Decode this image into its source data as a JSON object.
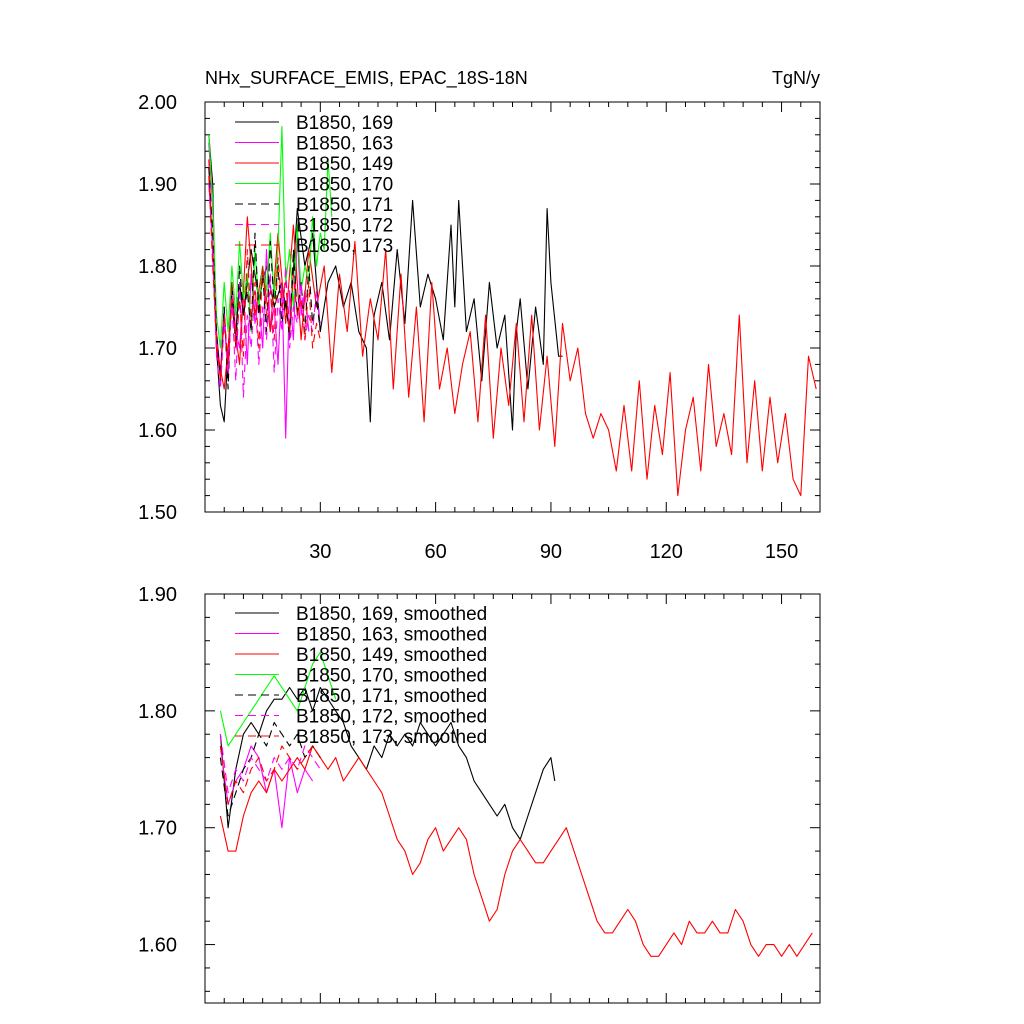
{
  "chart_data": [
    {
      "type": "line",
      "title": "NHx_SURFACE_EMIS, EPAC_18S-18N",
      "units": "TgN/y",
      "xlim": [
        0,
        160
      ],
      "ylim": [
        1.5,
        2.0
      ],
      "xticks": [
        30,
        60,
        90,
        120,
        150
      ],
      "yticks": [
        1.5,
        1.6,
        1.7,
        1.8,
        1.9,
        2.0
      ],
      "ytick_labels": [
        "1.50",
        "1.60",
        "1.70",
        "1.80",
        "1.90",
        "2.00"
      ],
      "series": [
        {
          "name": "B1850, 169",
          "color": "#000000",
          "dash": "solid",
          "x": [
            1,
            2,
            3,
            4,
            5,
            6,
            7,
            8,
            9,
            10,
            12,
            14,
            16,
            18,
            20,
            22,
            24,
            26,
            28,
            30,
            32,
            34,
            36,
            38,
            40,
            42,
            43,
            44,
            46,
            48,
            50,
            52,
            54,
            56,
            58,
            60,
            62,
            64,
            65,
            66,
            68,
            70,
            72,
            74,
            76,
            78,
            80,
            81,
            82,
            84,
            86,
            88,
            89,
            90,
            92,
            93
          ],
          "values": [
            1.96,
            1.9,
            1.7,
            1.63,
            1.61,
            1.7,
            1.76,
            1.72,
            1.78,
            1.74,
            1.82,
            1.76,
            1.8,
            1.75,
            1.78,
            1.72,
            1.87,
            1.8,
            1.84,
            1.72,
            1.78,
            1.8,
            1.75,
            1.78,
            1.72,
            1.7,
            1.61,
            1.74,
            1.78,
            1.71,
            1.82,
            1.73,
            1.88,
            1.75,
            1.79,
            1.76,
            1.71,
            1.85,
            1.75,
            1.88,
            1.72,
            1.76,
            1.66,
            1.78,
            1.7,
            1.74,
            1.6,
            1.72,
            1.76,
            1.65,
            1.75,
            1.68,
            1.87,
            1.78,
            1.69,
            1.69
          ]
        },
        {
          "name": "B1850, 163",
          "color": "#ff00ff",
          "dash": "solid",
          "x": [
            1,
            2,
            3,
            4,
            5,
            6,
            7,
            8,
            9,
            10,
            11,
            12,
            13,
            14,
            15,
            16,
            17,
            18,
            19,
            20,
            21,
            22,
            23,
            24,
            25,
            26,
            27
          ],
          "values": [
            1.95,
            1.87,
            1.72,
            1.67,
            1.75,
            1.66,
            1.78,
            1.72,
            1.7,
            1.77,
            1.68,
            1.79,
            1.73,
            1.76,
            1.7,
            1.82,
            1.72,
            1.75,
            1.68,
            1.78,
            1.59,
            1.77,
            1.71,
            1.84,
            1.74,
            1.77,
            1.72
          ]
        },
        {
          "name": "B1850, 149",
          "color": "#ff0000",
          "dash": "solid",
          "x": [
            1,
            3,
            5,
            7,
            9,
            11,
            13,
            15,
            17,
            19,
            21,
            23,
            25,
            27,
            29,
            31,
            33,
            35,
            37,
            39,
            41,
            43,
            45,
            47,
            49,
            51,
            53,
            55,
            57,
            59,
            61,
            63,
            65,
            67,
            69,
            71,
            73,
            75,
            77,
            79,
            81,
            83,
            85,
            87,
            89,
            91,
            93,
            95,
            97,
            99,
            101,
            103,
            105,
            107,
            109,
            111,
            113,
            115,
            117,
            119,
            121,
            123,
            125,
            127,
            129,
            131,
            133,
            135,
            137,
            139,
            141,
            143,
            145,
            147,
            149,
            151,
            153,
            155,
            157,
            159
          ],
          "values": [
            1.93,
            1.7,
            1.65,
            1.75,
            1.68,
            1.86,
            1.74,
            1.8,
            1.72,
            1.84,
            1.73,
            1.85,
            1.71,
            1.82,
            1.75,
            1.8,
            1.67,
            1.79,
            1.72,
            1.83,
            1.69,
            1.76,
            1.71,
            1.82,
            1.65,
            1.79,
            1.64,
            1.75,
            1.61,
            1.78,
            1.65,
            1.7,
            1.62,
            1.68,
            1.72,
            1.61,
            1.74,
            1.59,
            1.7,
            1.63,
            1.73,
            1.61,
            1.74,
            1.6,
            1.69,
            1.58,
            1.73,
            1.66,
            1.7,
            1.62,
            1.59,
            1.62,
            1.6,
            1.55,
            1.63,
            1.55,
            1.66,
            1.54,
            1.63,
            1.57,
            1.67,
            1.52,
            1.6,
            1.64,
            1.55,
            1.68,
            1.58,
            1.62,
            1.57,
            1.74,
            1.56,
            1.66,
            1.55,
            1.64,
            1.56,
            1.62,
            1.54,
            1.52,
            1.69,
            1.65
          ]
        },
        {
          "name": "B1850, 170",
          "color": "#00ff00",
          "dash": "solid",
          "x": [
            1,
            2,
            3,
            4,
            5,
            6,
            7,
            8,
            9,
            10,
            11,
            12,
            13,
            14,
            15,
            16,
            17,
            18,
            19,
            20,
            21,
            22,
            23,
            24,
            25,
            26,
            27,
            28,
            29,
            30,
            31,
            32,
            33
          ],
          "values": [
            1.96,
            1.88,
            1.74,
            1.7,
            1.78,
            1.72,
            1.8,
            1.74,
            1.83,
            1.76,
            1.79,
            1.72,
            1.82,
            1.75,
            1.8,
            1.77,
            1.84,
            1.76,
            1.82,
            1.97,
            1.78,
            1.82,
            1.75,
            1.85,
            1.77,
            1.8,
            1.78,
            1.86,
            1.8,
            1.84,
            1.82,
            1.93,
            1.86
          ]
        },
        {
          "name": "B1850, 171",
          "color": "#000000",
          "dash": "dash",
          "x": [
            1,
            2,
            3,
            4,
            5,
            6,
            7,
            8,
            9,
            10,
            11,
            12,
            13,
            14,
            15,
            16,
            17,
            18,
            19,
            20,
            21,
            22,
            23,
            24,
            25,
            26,
            27,
            28,
            29,
            30
          ],
          "values": [
            1.92,
            1.84,
            1.72,
            1.66,
            1.75,
            1.65,
            1.78,
            1.7,
            1.8,
            1.74,
            1.77,
            1.72,
            1.84,
            1.74,
            1.79,
            1.72,
            1.83,
            1.75,
            1.8,
            1.73,
            1.76,
            1.71,
            1.82,
            1.74,
            1.78,
            1.72,
            1.8,
            1.73,
            1.76,
            1.72
          ]
        },
        {
          "name": "B1850, 172",
          "color": "#ff00ff",
          "dash": "dash",
          "x": [
            1,
            2,
            3,
            4,
            5,
            6,
            7,
            8,
            9,
            10,
            11,
            12,
            13,
            14,
            15,
            16,
            17,
            18,
            19,
            20,
            21,
            22,
            23,
            24,
            25,
            26,
            27,
            28,
            29,
            30
          ],
          "values": [
            1.9,
            1.82,
            1.69,
            1.65,
            1.73,
            1.67,
            1.76,
            1.66,
            1.78,
            1.64,
            1.74,
            1.7,
            1.77,
            1.68,
            1.75,
            1.71,
            1.79,
            1.67,
            1.76,
            1.72,
            1.8,
            1.7,
            1.75,
            1.73,
            1.78,
            1.71,
            1.74,
            1.72,
            1.77,
            1.73
          ]
        },
        {
          "name": "B1850, 173",
          "color": "#ff0000",
          "dash": "dash",
          "x": [
            1,
            2,
            3,
            4,
            5,
            6,
            7,
            8,
            9,
            10,
            11,
            12,
            13,
            14,
            15,
            16,
            17,
            18,
            19,
            20,
            21,
            22,
            23,
            24,
            25,
            26,
            27,
            28,
            29,
            30
          ],
          "values": [
            1.91,
            1.8,
            1.71,
            1.66,
            1.74,
            1.68,
            1.78,
            1.7,
            1.76,
            1.69,
            1.82,
            1.73,
            1.78,
            1.7,
            1.8,
            1.74,
            1.77,
            1.71,
            1.81,
            1.75,
            1.78,
            1.72,
            1.79,
            1.74,
            1.76,
            1.71,
            1.78,
            1.7,
            1.73,
            1.71
          ]
        }
      ]
    },
    {
      "type": "line",
      "title": "",
      "xlim": [
        0,
        160
      ],
      "ylim": [
        1.55,
        1.9
      ],
      "xticks": [
        30,
        60,
        90,
        120,
        150
      ],
      "yticks": [
        1.6,
        1.7,
        1.8,
        1.9
      ],
      "ytick_labels": [
        "1.60",
        "1.70",
        "1.80",
        "1.90"
      ],
      "series": [
        {
          "name": "B1850, 169, smoothed",
          "color": "#000000",
          "dash": "solid",
          "x": [
            4,
            6,
            8,
            10,
            12,
            14,
            16,
            18,
            20,
            22,
            24,
            26,
            28,
            30,
            32,
            34,
            36,
            38,
            40,
            42,
            44,
            46,
            48,
            50,
            52,
            54,
            56,
            58,
            60,
            62,
            64,
            66,
            68,
            70,
            72,
            74,
            76,
            78,
            80,
            82,
            84,
            86,
            88,
            90,
            91
          ],
          "values": [
            1.78,
            1.7,
            1.75,
            1.78,
            1.79,
            1.78,
            1.8,
            1.81,
            1.81,
            1.82,
            1.81,
            1.82,
            1.8,
            1.82,
            1.81,
            1.8,
            1.79,
            1.77,
            1.76,
            1.75,
            1.77,
            1.76,
            1.78,
            1.77,
            1.78,
            1.77,
            1.79,
            1.78,
            1.77,
            1.78,
            1.79,
            1.77,
            1.76,
            1.74,
            1.73,
            1.72,
            1.71,
            1.72,
            1.7,
            1.69,
            1.71,
            1.73,
            1.75,
            1.76,
            1.74
          ]
        },
        {
          "name": "B1850, 163, smoothed",
          "color": "#ff00ff",
          "dash": "solid",
          "x": [
            4,
            6,
            8,
            10,
            12,
            14,
            16,
            18,
            20,
            22,
            24,
            26,
            28
          ],
          "values": [
            1.77,
            1.72,
            1.74,
            1.75,
            1.77,
            1.76,
            1.73,
            1.75,
            1.7,
            1.76,
            1.73,
            1.75,
            1.74
          ]
        },
        {
          "name": "B1850, 149, smoothed",
          "color": "#ff0000",
          "dash": "solid",
          "x": [
            4,
            6,
            8,
            10,
            12,
            14,
            16,
            18,
            20,
            22,
            24,
            26,
            28,
            30,
            32,
            34,
            36,
            38,
            40,
            42,
            44,
            46,
            48,
            50,
            52,
            54,
            56,
            58,
            60,
            62,
            64,
            66,
            68,
            70,
            72,
            74,
            76,
            78,
            80,
            82,
            84,
            86,
            88,
            90,
            92,
            94,
            96,
            98,
            100,
            102,
            104,
            106,
            108,
            110,
            112,
            114,
            116,
            118,
            120,
            122,
            124,
            126,
            128,
            130,
            132,
            134,
            136,
            138,
            140,
            142,
            144,
            146,
            148,
            150,
            152,
            154,
            156,
            158
          ],
          "values": [
            1.71,
            1.68,
            1.68,
            1.71,
            1.73,
            1.74,
            1.73,
            1.75,
            1.74,
            1.75,
            1.76,
            1.75,
            1.77,
            1.76,
            1.75,
            1.76,
            1.74,
            1.75,
            1.76,
            1.75,
            1.74,
            1.73,
            1.71,
            1.69,
            1.68,
            1.66,
            1.67,
            1.69,
            1.7,
            1.68,
            1.69,
            1.7,
            1.69,
            1.66,
            1.64,
            1.62,
            1.63,
            1.66,
            1.68,
            1.69,
            1.68,
            1.67,
            1.67,
            1.68,
            1.69,
            1.7,
            1.68,
            1.66,
            1.64,
            1.62,
            1.61,
            1.61,
            1.62,
            1.63,
            1.62,
            1.6,
            1.59,
            1.59,
            1.6,
            1.61,
            1.6,
            1.62,
            1.61,
            1.61,
            1.62,
            1.61,
            1.61,
            1.63,
            1.62,
            1.6,
            1.59,
            1.6,
            1.6,
            1.59,
            1.6,
            1.59,
            1.6,
            1.61
          ]
        },
        {
          "name": "B1850, 170, smoothed",
          "color": "#00ff00",
          "dash": "solid",
          "x": [
            4,
            6,
            8,
            10,
            12,
            14,
            16,
            18,
            20,
            22,
            24,
            26,
            28,
            30,
            32,
            34
          ],
          "values": [
            1.8,
            1.77,
            1.78,
            1.79,
            1.8,
            1.81,
            1.82,
            1.83,
            1.82,
            1.81,
            1.8,
            1.82,
            1.84,
            1.85,
            1.83,
            1.81
          ]
        },
        {
          "name": "B1850, 171, smoothed",
          "color": "#000000",
          "dash": "dash",
          "x": [
            4,
            6,
            8,
            10,
            12,
            14,
            16,
            18,
            20,
            22,
            24,
            26,
            28,
            30
          ],
          "values": [
            1.76,
            1.71,
            1.73,
            1.75,
            1.76,
            1.78,
            1.77,
            1.79,
            1.78,
            1.77,
            1.78,
            1.76,
            1.77,
            1.76
          ]
        },
        {
          "name": "B1850, 172, smoothed",
          "color": "#ff00ff",
          "dash": "dash",
          "x": [
            4,
            6,
            8,
            10,
            12,
            14,
            16,
            18,
            20,
            22,
            24,
            26,
            28,
            30
          ],
          "values": [
            1.78,
            1.73,
            1.75,
            1.74,
            1.76,
            1.75,
            1.74,
            1.76,
            1.75,
            1.76,
            1.75,
            1.77,
            1.76,
            1.75
          ]
        },
        {
          "name": "B1850, 173, smoothed",
          "color": "#ff0000",
          "dash": "dash",
          "x": [
            4,
            6,
            8,
            10,
            12,
            14,
            16,
            18,
            20,
            22,
            24,
            26,
            28,
            30
          ],
          "values": [
            1.77,
            1.72,
            1.74,
            1.73,
            1.75,
            1.76,
            1.74,
            1.75,
            1.77,
            1.76,
            1.75,
            1.76,
            1.77,
            1.76
          ]
        }
      ]
    }
  ]
}
